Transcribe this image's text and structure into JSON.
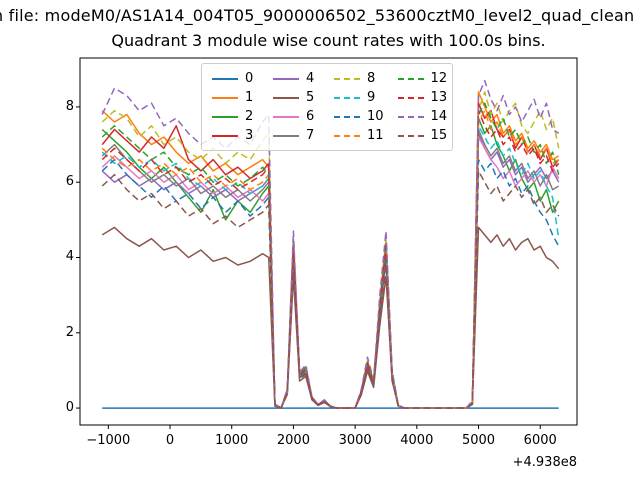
{
  "figure": {
    "suptitle": "n file: modeM0/AS1A14_004T05_9000006502_53600cztM0_level2_quad_clean",
    "background": "#ffffff",
    "spine_color": "#000000"
  },
  "chart_data": {
    "type": "line",
    "title": "Quadrant 3 module wise count rates with 100.0s bins.",
    "xlabel": "",
    "ylabel": "",
    "x_offset_label": "+4.938e8",
    "xlim": [
      -1459,
      6596
    ],
    "ylim": [
      -0.45,
      9.3
    ],
    "grid": false,
    "legend_position": "upper center",
    "legend_columns": 4,
    "x_ticks": [
      {
        "value": -1000,
        "label": "−1000"
      },
      {
        "value": 0,
        "label": "0"
      },
      {
        "value": 1000,
        "label": "1000"
      },
      {
        "value": 2000,
        "label": "2000"
      },
      {
        "value": 3000,
        "label": "3000"
      },
      {
        "value": 4000,
        "label": "4000"
      },
      {
        "value": 5000,
        "label": "5000"
      },
      {
        "value": 6000,
        "label": "6000"
      }
    ],
    "y_ticks": [
      {
        "value": 0,
        "label": "0"
      },
      {
        "value": 2,
        "label": "2"
      },
      {
        "value": 4,
        "label": "4"
      },
      {
        "value": 6,
        "label": "6"
      },
      {
        "value": 8,
        "label": "8"
      }
    ],
    "x": [
      -1100,
      -900,
      -700,
      -500,
      -300,
      -100,
      100,
      300,
      500,
      700,
      900,
      1100,
      1300,
      1500,
      1600,
      1700,
      1800,
      1900,
      2000,
      2100,
      2200,
      2300,
      2400,
      2500,
      2600,
      2700,
      2800,
      2900,
      3000,
      3100,
      3200,
      3300,
      3400,
      3500,
      3600,
      3700,
      3800,
      3900,
      4200,
      4500,
      4800,
      4900,
      5000,
      5100,
      5200,
      5300,
      5400,
      5500,
      5600,
      5700,
      5800,
      5900,
      6000,
      6100,
      6200,
      6300
    ],
    "series": [
      {
        "name": "0",
        "color": "#1f77b4",
        "dash": false,
        "values": [
          0,
          0,
          0,
          0,
          0,
          0,
          0,
          0,
          0,
          0,
          0,
          0,
          0,
          0,
          0,
          0,
          0,
          0,
          0,
          0,
          0,
          0,
          0,
          0,
          0,
          0,
          0,
          0,
          0,
          0,
          0,
          0,
          0,
          0,
          0,
          0,
          0,
          0,
          0,
          0,
          0,
          0,
          0,
          0,
          0,
          0,
          0,
          0,
          0,
          0,
          0,
          0,
          0,
          0,
          0,
          0
        ]
      },
      {
        "name": "1",
        "color": "#ff7f0e",
        "dash": false,
        "values": [
          7.9,
          7.6,
          7.8,
          7.3,
          7.0,
          7.2,
          6.8,
          6.5,
          6.7,
          6.3,
          6.5,
          6.2,
          6.4,
          6.6,
          6.4,
          0.1,
          0,
          0.48,
          4.5,
          0.92,
          1.1,
          0.3,
          0.09,
          0.2,
          0.05,
          0,
          0,
          0,
          0,
          0.45,
          1.25,
          0.72,
          2.8,
          4.45,
          0.95,
          0.07,
          0,
          0,
          0,
          0,
          0,
          0.15,
          8.4,
          8.0,
          7.6,
          7.8,
          7.3,
          7.5,
          7.1,
          7.3,
          6.9,
          7.1,
          6.8,
          7.0,
          6.6,
          6.7
        ]
      },
      {
        "name": "2",
        "color": "#2ca02c",
        "dash": false,
        "values": [
          7.4,
          7.1,
          6.8,
          6.4,
          6.1,
          6.4,
          6.0,
          5.6,
          5.2,
          5.8,
          5.0,
          5.5,
          5.2,
          5.7,
          5.9,
          0.1,
          0,
          0.45,
          4.35,
          0.88,
          1.05,
          0.27,
          0.09,
          0.19,
          0.05,
          0,
          0,
          0,
          0,
          0.43,
          1.2,
          0.68,
          2.7,
          4.35,
          0.9,
          0.06,
          0,
          0,
          0,
          0,
          0,
          0.15,
          7.7,
          7.3,
          7.5,
          7.0,
          6.7,
          6.3,
          6.6,
          6.1,
          5.8,
          6.0,
          5.5,
          5.8,
          5.2,
          5.5
        ]
      },
      {
        "name": "3",
        "color": "#d62728",
        "dash": false,
        "values": [
          7.0,
          7.4,
          7.1,
          6.8,
          7.2,
          6.9,
          7.5,
          6.6,
          6.3,
          6.6,
          6.2,
          6.4,
          6.1,
          6.3,
          6.5,
          0.1,
          0,
          0.46,
          4.4,
          0.9,
          1.05,
          0.28,
          0.09,
          0.2,
          0.05,
          0,
          0,
          0,
          0,
          0.44,
          1.2,
          0.7,
          2.75,
          4.4,
          0.9,
          0.07,
          0,
          0,
          0,
          0,
          0,
          0.15,
          8.1,
          7.7,
          7.9,
          7.4,
          7.2,
          7.4,
          6.9,
          7.2,
          6.8,
          7.0,
          6.6,
          6.9,
          6.4,
          6.6
        ]
      },
      {
        "name": "4",
        "color": "#9467bd",
        "dash": false,
        "values": [
          6.3,
          6.0,
          6.2,
          5.9,
          6.1,
          5.8,
          6.0,
          5.7,
          5.9,
          5.6,
          5.8,
          5.5,
          5.7,
          5.9,
          6.1,
          0.1,
          0,
          0.43,
          4.15,
          0.84,
          0.99,
          0.26,
          0.08,
          0.18,
          0.04,
          0,
          0,
          0,
          0,
          0.41,
          1.15,
          0.65,
          2.6,
          4.15,
          0.85,
          0.06,
          0,
          0,
          0,
          0,
          0,
          0.15,
          7.3,
          6.9,
          6.6,
          6.8,
          6.4,
          6.6,
          6.2,
          6.4,
          6.0,
          6.2,
          6.4,
          6.1,
          6.3,
          6.0
        ]
      },
      {
        "name": "5",
        "color": "#8c564b",
        "dash": false,
        "values": [
          4.6,
          4.8,
          4.5,
          4.3,
          4.5,
          4.2,
          4.3,
          4.0,
          4.2,
          3.9,
          4.0,
          3.8,
          3.9,
          4.1,
          4.0,
          0.05,
          0,
          0.36,
          3.5,
          0.72,
          0.84,
          0.22,
          0.07,
          0.15,
          0.04,
          0,
          0,
          0,
          0,
          0.35,
          0.98,
          0.55,
          2.2,
          3.5,
          0.72,
          0.05,
          0,
          0,
          0,
          0,
          0,
          0.1,
          4.8,
          4.6,
          4.4,
          4.6,
          4.3,
          4.5,
          4.2,
          4.4,
          4.5,
          4.2,
          4.3,
          4.0,
          3.9,
          3.7
        ]
      },
      {
        "name": "6",
        "color": "#e377c2",
        "dash": false,
        "values": [
          6.4,
          6.7,
          6.4,
          6.1,
          6.3,
          6.0,
          6.2,
          5.8,
          6.0,
          5.7,
          5.9,
          5.6,
          5.8,
          5.5,
          5.7,
          0.1,
          0,
          0.42,
          4.05,
          0.82,
          0.96,
          0.25,
          0.08,
          0.18,
          0.04,
          0,
          0,
          0,
          0,
          0.4,
          1.12,
          0.63,
          2.5,
          4.05,
          0.83,
          0.06,
          0,
          0,
          0,
          0,
          0,
          0.15,
          7.2,
          6.9,
          6.6,
          6.4,
          6.1,
          6.3,
          5.9,
          6.1,
          6.3,
          6.0,
          6.2,
          5.9,
          6.4,
          6.1
        ]
      },
      {
        "name": "7",
        "color": "#7f7f7f",
        "dash": false,
        "values": [
          6.7,
          7.0,
          6.6,
          6.3,
          6.0,
          6.2,
          5.9,
          6.1,
          5.7,
          5.9,
          5.6,
          5.8,
          5.5,
          5.8,
          6.0,
          0.1,
          0,
          0.43,
          4.1,
          0.83,
          0.98,
          0.25,
          0.08,
          0.18,
          0.04,
          0,
          0,
          0,
          0,
          0.41,
          1.13,
          0.64,
          2.55,
          4.1,
          0.84,
          0.06,
          0,
          0,
          0,
          0,
          0,
          0.15,
          7.4,
          7.0,
          6.7,
          6.9,
          6.5,
          6.7,
          6.3,
          6.5,
          6.1,
          6.3,
          5.9,
          6.2,
          5.8,
          5.9
        ]
      },
      {
        "name": "8",
        "color": "#bcbd22",
        "dash": true,
        "values": [
          7.6,
          7.9,
          7.7,
          7.2,
          7.5,
          7.0,
          7.2,
          6.8,
          6.6,
          6.9,
          6.5,
          6.8,
          6.6,
          7.1,
          7.3,
          0.1,
          0,
          0.5,
          4.5,
          0.9,
          1.1,
          0.28,
          0.1,
          0.2,
          0.05,
          0,
          0,
          0,
          0,
          0.45,
          1.25,
          0.7,
          2.85,
          4.5,
          0.95,
          0.07,
          0,
          0,
          0,
          0,
          0,
          0.15,
          7.9,
          8.4,
          7.8,
          8.1,
          7.6,
          7.9,
          8.1,
          7.5,
          7.3,
          7.6,
          7.9,
          7.4,
          7.7,
          6.9
        ]
      },
      {
        "name": "9",
        "color": "#17becf",
        "dash": true,
        "values": [
          6.8,
          6.5,
          6.7,
          6.4,
          6.6,
          6.3,
          6.5,
          6.1,
          5.9,
          6.1,
          5.8,
          6.0,
          5.7,
          5.9,
          6.1,
          0.1,
          0,
          0.44,
          4.25,
          0.86,
          1.0,
          0.26,
          0.08,
          0.19,
          0.05,
          0,
          0,
          0,
          0,
          0.42,
          1.18,
          0.66,
          2.65,
          4.25,
          0.87,
          0.06,
          0,
          0,
          0,
          0,
          0,
          0.15,
          7.5,
          7.2,
          6.9,
          7.1,
          6.7,
          6.9,
          6.5,
          6.2,
          6.5,
          6.1,
          6.3,
          5.9,
          5.6,
          4.5
        ]
      },
      {
        "name": "10",
        "color": "#1f77b4",
        "dash": true,
        "values": [
          6.3,
          6.6,
          6.2,
          5.9,
          5.6,
          5.9,
          5.5,
          5.7,
          5.3,
          5.6,
          5.2,
          5.5,
          5.1,
          5.4,
          5.6,
          0.1,
          0,
          0.41,
          4.0,
          0.8,
          0.94,
          0.24,
          0.08,
          0.17,
          0.04,
          0,
          0,
          0,
          0,
          0.4,
          1.1,
          0.62,
          2.45,
          4.0,
          0.8,
          0.06,
          0,
          0,
          0,
          0,
          0,
          0.15,
          6.6,
          6.3,
          6.5,
          6.1,
          6.3,
          5.9,
          6.1,
          5.7,
          5.9,
          5.5,
          5.2,
          5.0,
          4.6,
          4.3
        ]
      },
      {
        "name": "11",
        "color": "#ff7f0e",
        "dash": true,
        "values": [
          6.9,
          6.6,
          6.4,
          6.6,
          6.3,
          6.5,
          6.2,
          6.4,
          6.0,
          6.2,
          5.9,
          6.1,
          5.8,
          6.0,
          6.2,
          0.1,
          0,
          0.45,
          4.35,
          0.88,
          1.04,
          0.27,
          0.09,
          0.19,
          0.05,
          0,
          0,
          0,
          0,
          0.43,
          1.2,
          0.68,
          2.7,
          4.3,
          0.9,
          0.06,
          0,
          0,
          0,
          0,
          0,
          0.15,
          7.6,
          7.9,
          7.4,
          7.6,
          7.2,
          7.4,
          7.0,
          7.2,
          6.8,
          7.0,
          6.7,
          6.9,
          6.5,
          6.6
        ]
      },
      {
        "name": "12",
        "color": "#2ca02c",
        "dash": true,
        "values": [
          7.2,
          7.5,
          7.2,
          6.9,
          6.6,
          6.8,
          6.4,
          6.2,
          6.4,
          6.0,
          6.2,
          5.9,
          6.1,
          6.4,
          6.2,
          0.1,
          0,
          0.47,
          4.4,
          0.9,
          1.08,
          0.28,
          0.09,
          0.2,
          0.05,
          0,
          0,
          0,
          0,
          0.44,
          1.22,
          0.7,
          2.78,
          4.4,
          0.92,
          0.07,
          0,
          0,
          0,
          0,
          0,
          0.15,
          7.8,
          8.1,
          7.7,
          7.4,
          7.7,
          7.2,
          7.4,
          7.0,
          7.2,
          6.8,
          7.0,
          6.5,
          6.8,
          6.2
        ]
      },
      {
        "name": "13",
        "color": "#d62728",
        "dash": true,
        "values": [
          6.6,
          6.9,
          6.6,
          6.3,
          6.6,
          6.2,
          6.4,
          6.0,
          6.2,
          5.9,
          6.1,
          5.8,
          6.0,
          6.2,
          6.4,
          0.1,
          0,
          0.45,
          4.3,
          0.87,
          1.02,
          0.27,
          0.09,
          0.19,
          0.05,
          0,
          0,
          0,
          0,
          0.43,
          1.18,
          0.68,
          2.7,
          4.3,
          0.88,
          0.06,
          0,
          0,
          0,
          0,
          0,
          0.15,
          7.9,
          7.5,
          7.2,
          7.4,
          7.0,
          7.2,
          6.8,
          7.0,
          6.7,
          6.9,
          6.5,
          6.7,
          6.3,
          6.5
        ]
      },
      {
        "name": "14",
        "color": "#9467bd",
        "dash": true,
        "values": [
          7.8,
          8.5,
          8.3,
          7.9,
          8.1,
          7.5,
          7.7,
          7.3,
          7.0,
          7.2,
          6.9,
          7.2,
          7.0,
          7.6,
          7.8,
          0.1,
          0,
          0.5,
          4.7,
          0.95,
          1.15,
          0.3,
          0.1,
          0.22,
          0.06,
          0,
          0,
          0,
          0,
          0.5,
          1.35,
          0.75,
          3.0,
          4.7,
          1.0,
          0.08,
          0,
          0,
          0,
          0,
          0,
          0.2,
          8.3,
          8.7,
          8.2,
          7.9,
          8.3,
          7.8,
          8.0,
          7.6,
          7.9,
          8.2,
          7.7,
          8.1,
          7.4,
          7.3
        ]
      },
      {
        "name": "15",
        "color": "#8c564b",
        "dash": true,
        "values": [
          5.9,
          6.2,
          5.8,
          5.5,
          5.7,
          5.3,
          5.5,
          5.1,
          5.3,
          4.9,
          5.1,
          4.8,
          5.0,
          5.2,
          5.4,
          0.1,
          0,
          0.39,
          3.8,
          0.77,
          0.9,
          0.23,
          0.07,
          0.16,
          0.04,
          0,
          0,
          0,
          0,
          0.38,
          1.05,
          0.59,
          2.35,
          3.8,
          0.77,
          0.05,
          0,
          0,
          0,
          0,
          0,
          0.1,
          6.3,
          6.0,
          5.7,
          5.9,
          5.5,
          5.7,
          5.9,
          5.6,
          5.8,
          5.4,
          5.6,
          5.2,
          5.4,
          5.1
        ]
      }
    ]
  }
}
